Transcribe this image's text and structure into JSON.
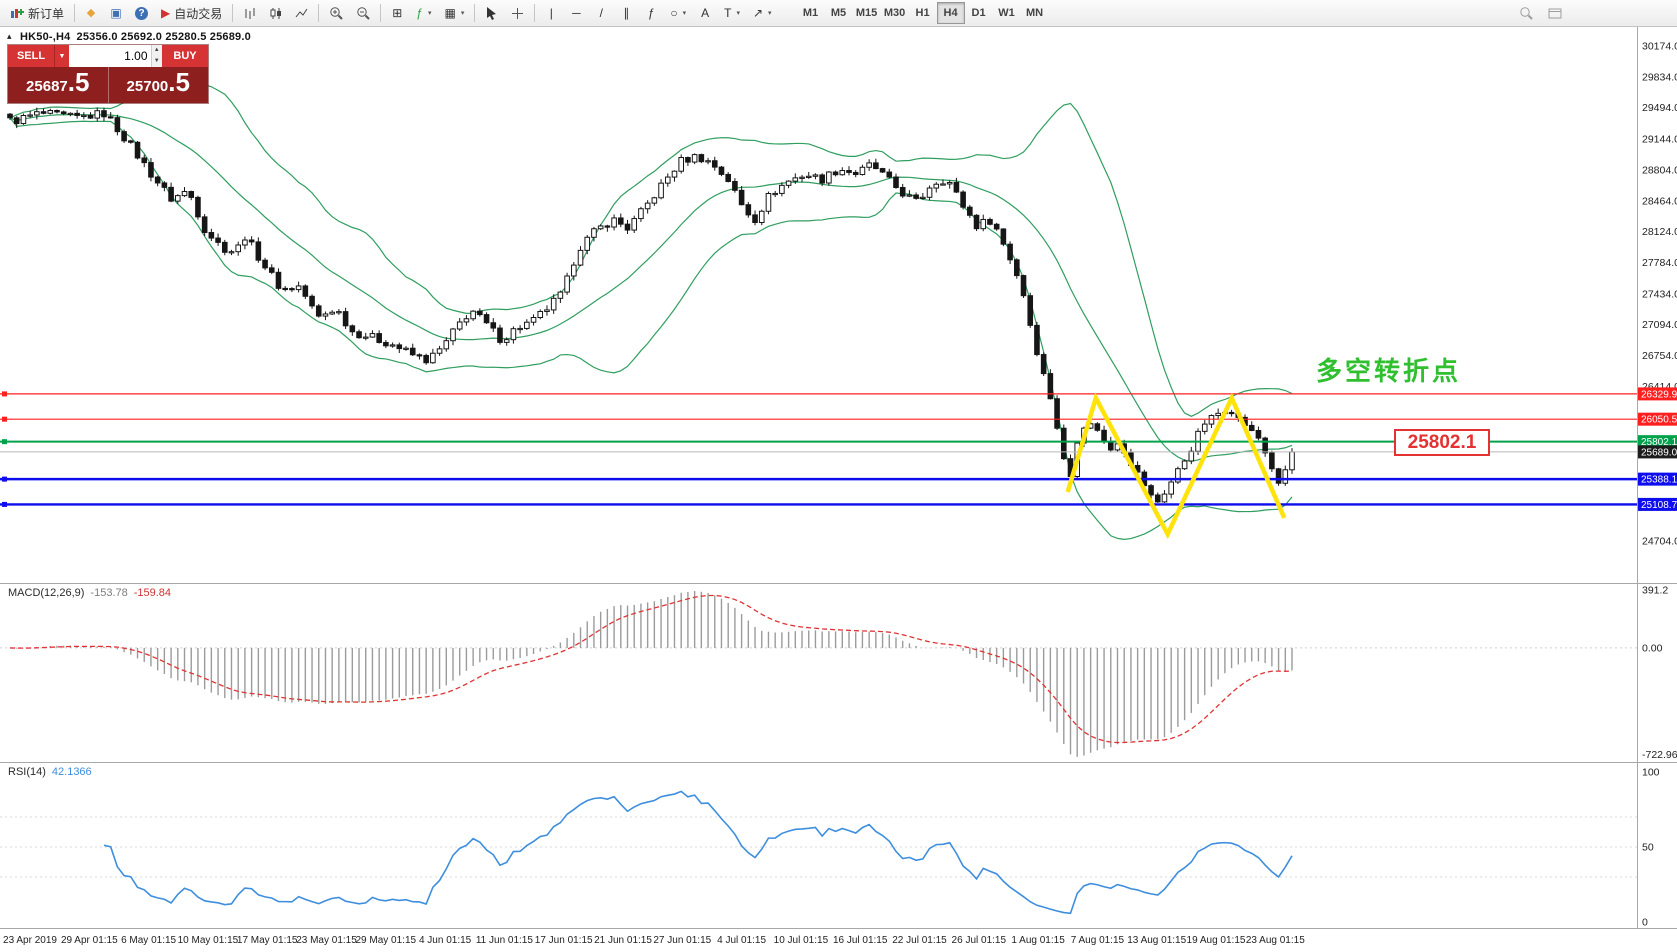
{
  "toolbar": {
    "new_order_label": "新订单",
    "auto_trading_label": "自动交易",
    "timeframes": [
      "M1",
      "M5",
      "M15",
      "M30",
      "H1",
      "H4",
      "D1",
      "W1",
      "MN"
    ],
    "active_timeframe": "H4",
    "icons": {
      "templates": "◆",
      "profile": "▣",
      "community": "?",
      "autotrade": "▶",
      "grid": "⊞",
      "indicators": "ƒ",
      "objects": "▦",
      "vline": "|",
      "hline": "─",
      "trendline": "/",
      "channel": "∥",
      "fibo": "ƒ",
      "shapes": "○",
      "text_tool": "A",
      "label_tool": "T",
      "arrows": "↗",
      "caret": "▾"
    }
  },
  "chart": {
    "symbol_title": "HK50-,H4",
    "ohlc_text": "25356.0 25692.0 25280.5 25689.0",
    "collapse_arrow": "▴"
  },
  "trade_panel": {
    "sell_label": "SELL",
    "buy_label": "BUY",
    "volume": "1.00",
    "sell_price_main": "25687",
    "sell_price_big": ".5",
    "buy_price_main": "25700",
    "buy_price_big": ".5",
    "spin_up": "▲",
    "spin_down": "▼",
    "dropdown": "▼"
  },
  "annotations": {
    "turning_point": "多空转折点",
    "price_callout": "25802.1"
  },
  "main_axis_labels": [
    "30174.0",
    "29834.0",
    "29494.0",
    "29144.0",
    "28804.0",
    "28464.0",
    "28124.0",
    "27784.0",
    "27434.0",
    "27094.0",
    "26754.0",
    "26414.0",
    "24704.0"
  ],
  "hlines": [
    {
      "price": 26329.9,
      "label": "26329.9",
      "color": "#ff1f1f",
      "width": 1.2
    },
    {
      "price": 26050.5,
      "label": "26050.5",
      "color": "#ff1f1f",
      "width": 1.2
    },
    {
      "price": 25802.1,
      "label": "25802.1",
      "color": "#00a14b",
      "width": 2
    },
    {
      "price": 25388.1,
      "label": "25388.1",
      "color": "#0d0dee",
      "width": 2.4
    },
    {
      "price": 25108.7,
      "label": "25108.7",
      "color": "#0d0dee",
      "width": 2.4
    }
  ],
  "price_line": {
    "price": 25689.0,
    "label": "25689.0"
  },
  "macd": {
    "title": "MACD(12,26,9)",
    "value_main": "-153.78",
    "value_signal": "-159.84",
    "axis": [
      "391.2",
      "0.00",
      "-722.96"
    ]
  },
  "rsi": {
    "title": "RSI(14)",
    "value": "42.1366",
    "axis": [
      "100",
      "50",
      "0"
    ]
  },
  "time_axis": [
    "23 Apr 2019",
    "29 Apr 01:15",
    "6 May 01:15",
    "10 May 01:15",
    "17 May 01:15",
    "23 May 01:15",
    "29 May 01:15",
    "4 Jun 01:15",
    "11 Jun 01:15",
    "17 Jun 01:15",
    "21 Jun 01:15",
    "27 Jun 01:15",
    "4 Jul 01:15",
    "10 Jul 01:15",
    "16 Jul 01:15",
    "22 Jul 01:15",
    "26 Jul 01:15",
    "1 Aug 01:15",
    "7 Aug 01:15",
    "13 Aug 01:15",
    "19 Aug 01:15",
    "23 Aug 01:15"
  ],
  "chart_data": {
    "type": "candlestick",
    "symbol": "HK50",
    "timeframe": "H4",
    "ohlc_display": {
      "open": 25356.0,
      "high": 25692.0,
      "low": 25280.5,
      "close": 25689.0
    },
    "bid": 25687.5,
    "ask": 25700.5,
    "bars": 192,
    "last_close": 25689.0,
    "ylim": [
      24240,
      30400
    ],
    "bollinger": {
      "period": 20,
      "deviation": 2
    },
    "levels": {
      "resistance": [
        26329.9,
        26050.5
      ],
      "pivot": 25802.1,
      "support": [
        25388.1,
        25108.7
      ]
    },
    "indicators": {
      "macd": {
        "fast": 12,
        "slow": 26,
        "signal": 9,
        "current": [
          -153.78,
          -159.84
        ],
        "range": [
          391.2,
          -722.96
        ]
      },
      "rsi": {
        "period": 14,
        "current": 42.1366
      }
    },
    "price_path": [
      [
        0.004,
        29350
      ],
      [
        0.023,
        29430
      ],
      [
        0.051,
        29380
      ],
      [
        0.074,
        29430
      ],
      [
        0.09,
        29150
      ],
      [
        0.109,
        28780
      ],
      [
        0.126,
        28480
      ],
      [
        0.139,
        28580
      ],
      [
        0.152,
        28150
      ],
      [
        0.165,
        27950
      ],
      [
        0.176,
        27900
      ],
      [
        0.183,
        28080
      ],
      [
        0.197,
        27780
      ],
      [
        0.212,
        27480
      ],
      [
        0.226,
        27520
      ],
      [
        0.24,
        27170
      ],
      [
        0.254,
        27280
      ],
      [
        0.267,
        27020
      ],
      [
        0.281,
        26960
      ],
      [
        0.298,
        26880
      ],
      [
        0.314,
        26760
      ],
      [
        0.326,
        26700
      ],
      [
        0.338,
        26850
      ],
      [
        0.349,
        27080
      ],
      [
        0.36,
        27260
      ],
      [
        0.372,
        27090
      ],
      [
        0.384,
        26920
      ],
      [
        0.395,
        27060
      ],
      [
        0.408,
        27130
      ],
      [
        0.42,
        27290
      ],
      [
        0.431,
        27440
      ],
      [
        0.443,
        27930
      ],
      [
        0.456,
        28120
      ],
      [
        0.47,
        28260
      ],
      [
        0.482,
        28160
      ],
      [
        0.495,
        28380
      ],
      [
        0.509,
        28650
      ],
      [
        0.523,
        28900
      ],
      [
        0.536,
        28960
      ],
      [
        0.548,
        28870
      ],
      [
        0.56,
        28700
      ],
      [
        0.572,
        28380
      ],
      [
        0.581,
        28260
      ],
      [
        0.593,
        28540
      ],
      [
        0.607,
        28680
      ],
      [
        0.62,
        28760
      ],
      [
        0.633,
        28700
      ],
      [
        0.647,
        28820
      ],
      [
        0.661,
        28760
      ],
      [
        0.672,
        28870
      ],
      [
        0.685,
        28690
      ],
      [
        0.697,
        28540
      ],
      [
        0.708,
        28440
      ],
      [
        0.719,
        28660
      ],
      [
        0.731,
        28710
      ],
      [
        0.742,
        28440
      ],
      [
        0.754,
        28190
      ],
      [
        0.766,
        28260
      ],
      [
        0.778,
        27890
      ],
      [
        0.789,
        27520
      ],
      [
        0.8,
        26830
      ],
      [
        0.81,
        26380
      ],
      [
        0.818,
        25880
      ],
      [
        0.826,
        25330
      ],
      [
        0.834,
        25920
      ],
      [
        0.841,
        26010
      ],
      [
        0.849,
        25930
      ],
      [
        0.857,
        25690
      ],
      [
        0.865,
        25810
      ],
      [
        0.873,
        25580
      ],
      [
        0.881,
        25430
      ],
      [
        0.888,
        25230
      ],
      [
        0.896,
        25130
      ],
      [
        0.904,
        25310
      ],
      [
        0.912,
        25520
      ],
      [
        0.92,
        25660
      ],
      [
        0.927,
        25910
      ],
      [
        0.935,
        26060
      ],
      [
        0.943,
        26120
      ],
      [
        0.951,
        26160
      ],
      [
        0.959,
        26050
      ],
      [
        0.966,
        25950
      ],
      [
        0.974,
        25840
      ],
      [
        0.982,
        25590
      ],
      [
        0.99,
        25310
      ],
      [
        1.0,
        25689
      ]
    ],
    "zigzag_points": [
      [
        0.825,
        25245
      ],
      [
        0.847,
        26285
      ],
      [
        0.903,
        24780
      ],
      [
        0.953,
        26285
      ],
      [
        0.994,
        24960
      ]
    ]
  }
}
